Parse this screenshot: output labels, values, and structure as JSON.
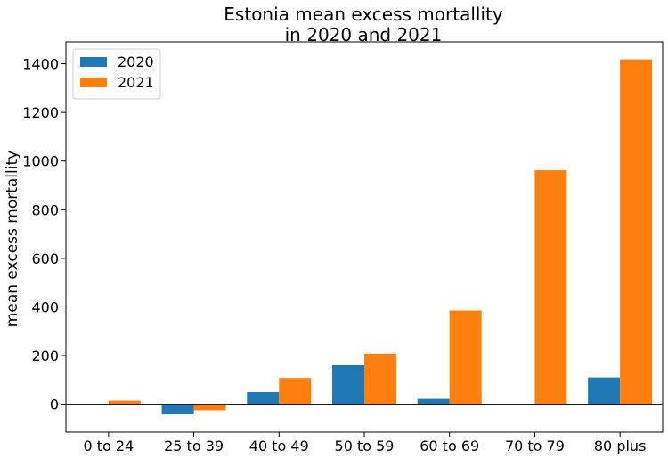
{
  "chart_data": {
    "type": "bar",
    "title_line1": "Estonia mean excess mortallity",
    "title_line2": "in 2020 and 2021",
    "xlabel": "",
    "ylabel": "mean excess mortallity",
    "categories": [
      "0 to 24",
      "25 to 39",
      "40 to 49",
      "50 to 59",
      "60 to 69",
      "70 to 79",
      "80 plus"
    ],
    "series": [
      {
        "name": "2020",
        "color": "#1f77b4",
        "values": [
          0,
          -42,
          50,
          160,
          22,
          0,
          110
        ]
      },
      {
        "name": "2021",
        "color": "#ff7f0e",
        "values": [
          15,
          -25,
          108,
          208,
          385,
          962,
          1418
        ]
      }
    ],
    "ylim": [
      -115,
      1490
    ],
    "yticks": [
      0,
      200,
      400,
      600,
      800,
      1000,
      1200,
      1400
    ],
    "legend_position": "top-left",
    "grid": false,
    "zero_line": true
  }
}
